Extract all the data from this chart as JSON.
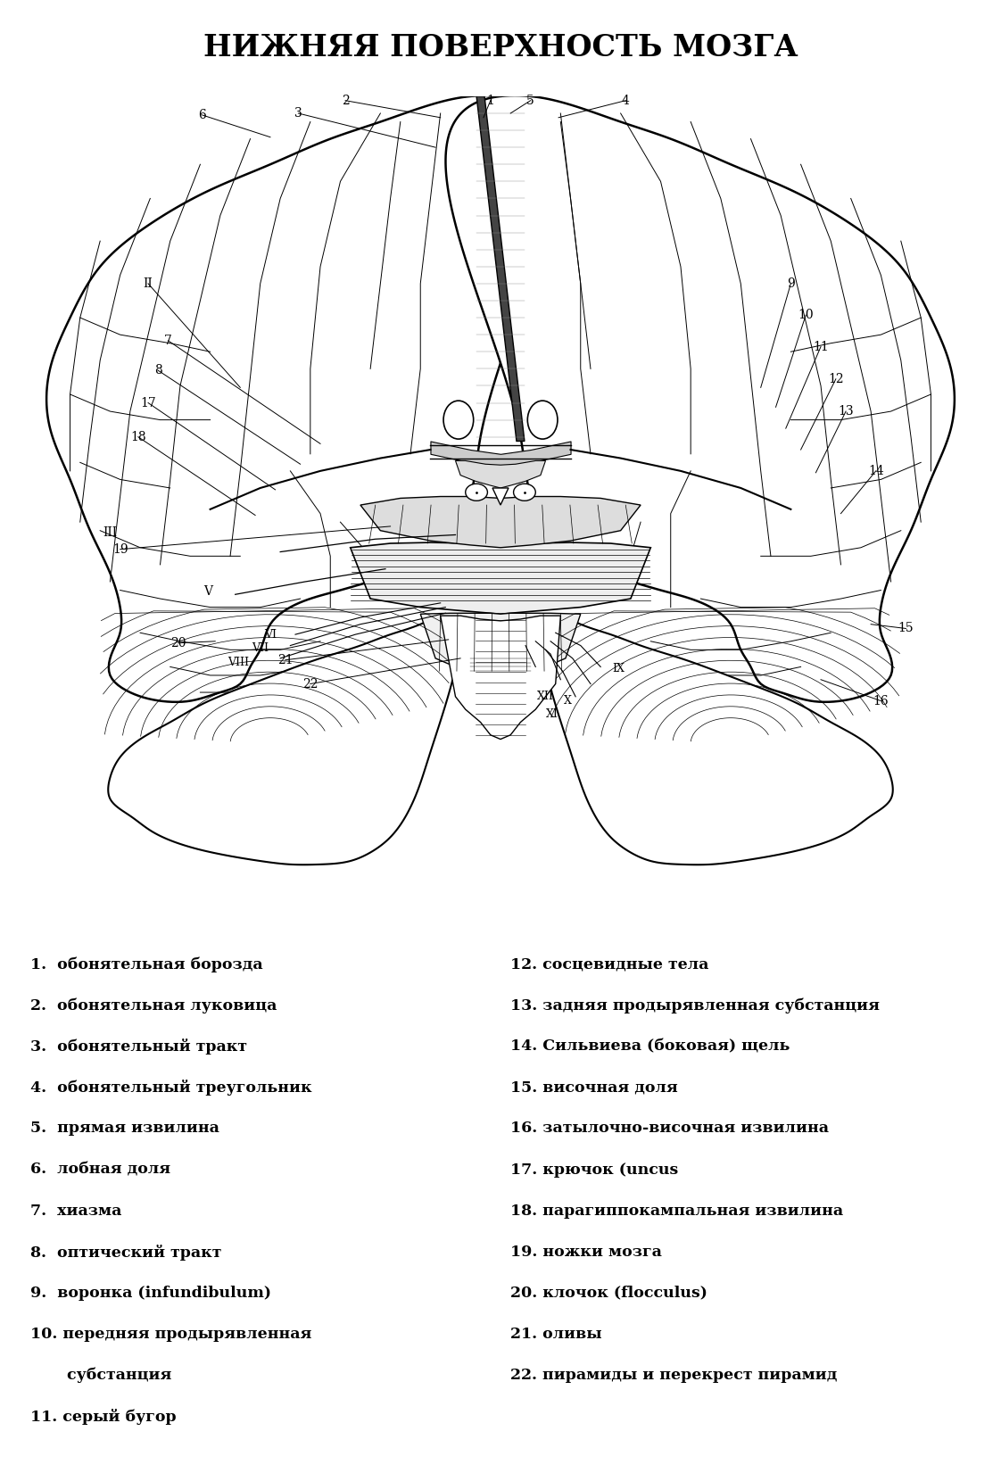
{
  "title": "НИЖНЯЯ ПОВЕРХНОСТЬ МОЗГА",
  "title_fontsize": 24,
  "bg_color": "#ffffff",
  "text_color": "#000000",
  "legend_left": [
    "1.  обонятельная борозда",
    "2.  обонятельная луковица",
    "3.  обонятельный тракт",
    "4.  обонятельный треугольник",
    "5.  прямая извилина",
    "6.  лобная доля",
    "7.  хиазма",
    "8.  оптический тракт",
    "9.  воронка (infundibulum)",
    "10. передняя продырявленная",
    "     субстанция",
    "11. серый бугор"
  ],
  "legend_right": [
    "12. сосцевидные тела",
    "13. задняя продырявленная субстанция",
    "14. Сильвиева (боковая) щель",
    "15. височная доля",
    "16. затылочно-височная извилина",
    "17. крючок (uncus",
    "18. парагиппокампальная извилина",
    "19. ножки мозга",
    "20. клочок (flocculus)",
    "21. оливы",
    "22. пирамиды и перекрест пирамид"
  ],
  "label_fontsize": 12.5,
  "diagram_label_fontsize": 10
}
